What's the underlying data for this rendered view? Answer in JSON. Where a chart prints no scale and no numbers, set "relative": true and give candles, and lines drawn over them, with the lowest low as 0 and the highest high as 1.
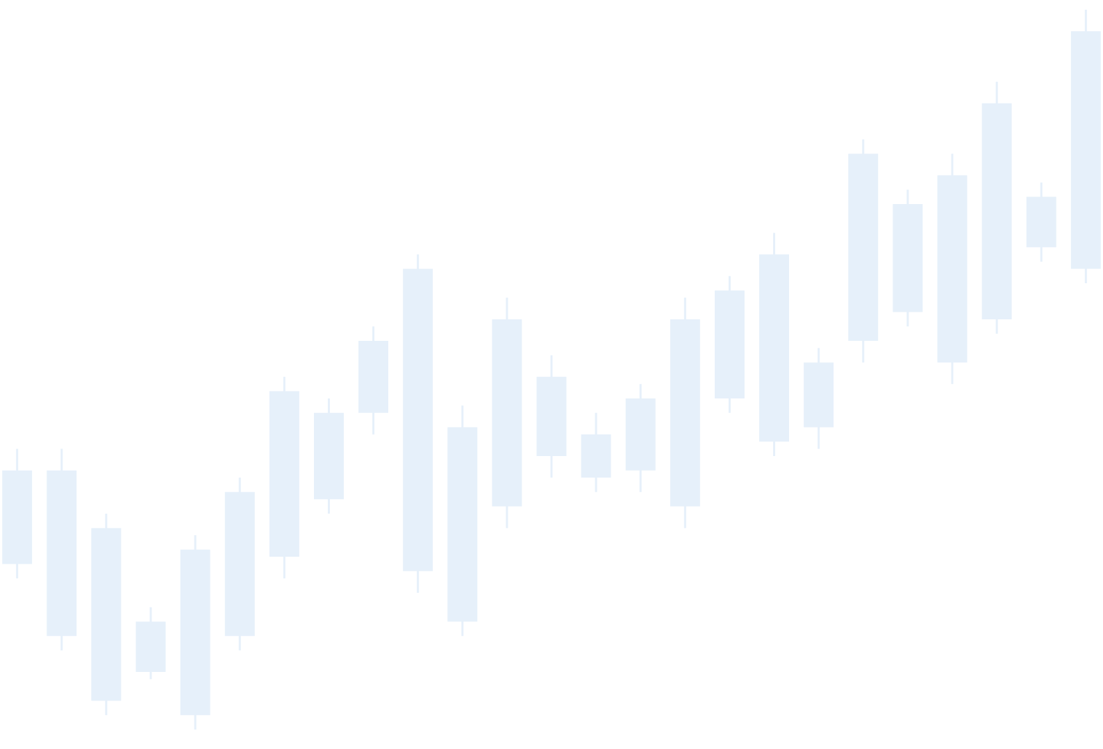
{
  "chart_data": {
    "type": "candlestick",
    "relative": true,
    "color": "#e6f0fa",
    "categories": [
      null,
      null,
      null,
      null,
      null,
      null,
      null,
      null,
      null,
      null,
      null,
      null,
      null,
      null,
      null,
      null,
      null,
      null,
      null,
      null,
      null,
      null,
      null,
      null,
      null
    ],
    "ohlc": [
      [
        0.23,
        0.39,
        0.21,
        0.36
      ],
      [
        0.13,
        0.39,
        0.11,
        0.36
      ],
      [
        0.04,
        0.3,
        0.02,
        0.28
      ],
      [
        0.08,
        0.17,
        0.07,
        0.15
      ],
      [
        0.02,
        0.27,
        0,
        0.25
      ],
      [
        0.13,
        0.35,
        0.11,
        0.33
      ],
      [
        0.24,
        0.49,
        0.21,
        0.47
      ],
      [
        0.32,
        0.46,
        0.3,
        0.44
      ],
      [
        0.44,
        0.56,
        0.41,
        0.54
      ],
      [
        0.22,
        0.66,
        0.19,
        0.64
      ],
      [
        0.15,
        0.45,
        0.13,
        0.42
      ],
      [
        0.31,
        0.6,
        0.28,
        0.57
      ],
      [
        0.38,
        0.52,
        0.35,
        0.49
      ],
      [
        0.35,
        0.44,
        0.33,
        0.41
      ],
      [
        0.36,
        0.48,
        0.33,
        0.46
      ],
      [
        0.31,
        0.6,
        0.28,
        0.57
      ],
      [
        0.46,
        0.63,
        0.44,
        0.61
      ],
      [
        0.4,
        0.69,
        0.38,
        0.66
      ],
      [
        0.42,
        0.53,
        0.39,
        0.51
      ],
      [
        0.54,
        0.82,
        0.51,
        0.8
      ],
      [
        0.58,
        0.75,
        0.56,
        0.73
      ],
      [
        0.51,
        0.8,
        0.48,
        0.77
      ],
      [
        0.57,
        0.9,
        0.55,
        0.87
      ],
      [
        0.67,
        0.76,
        0.65,
        0.74
      ],
      [
        0.64,
        1,
        0.62,
        0.97
      ]
    ]
  }
}
